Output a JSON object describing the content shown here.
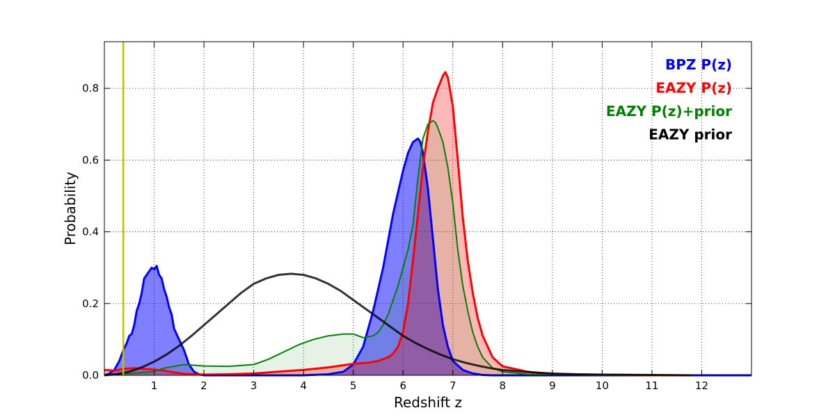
{
  "chart_data": {
    "type": "line",
    "title": "",
    "xlabel": "Redshift z",
    "ylabel": "Probability",
    "xlim": [
      0,
      13
    ],
    "ylim": [
      0,
      0.93
    ],
    "grid": true,
    "legend_position": "top-right",
    "x_ticks": [
      1,
      2,
      3,
      4,
      5,
      6,
      7,
      8,
      9,
      10,
      11,
      12
    ],
    "x_tick_labels": [
      "1",
      "2",
      "3",
      "4",
      "5",
      "6",
      "7",
      "8",
      "9",
      "10",
      "11",
      "12"
    ],
    "y_ticks": [
      0.0,
      0.2,
      0.4,
      0.6,
      0.8
    ],
    "y_tick_labels": [
      "0.0",
      "0.2",
      "0.4",
      "0.6",
      "0.8"
    ],
    "vertical_line": {
      "x": 0.38,
      "color": "#bfbf00"
    },
    "series": [
      {
        "name": "BPZ P(z)",
        "color": "#0000ff",
        "fill": "#0000ff",
        "fill_opacity": 0.5,
        "x": [
          0,
          0.1,
          0.2,
          0.3,
          0.38,
          0.45,
          0.5,
          0.55,
          0.6,
          0.65,
          0.7,
          0.75,
          0.8,
          0.85,
          0.9,
          0.95,
          1.0,
          1.05,
          1.1,
          1.15,
          1.2,
          1.25,
          1.3,
          1.35,
          1.4,
          1.5,
          1.6,
          1.7,
          1.8,
          1.9,
          2.0,
          2.5,
          3.0,
          3.5,
          4.0,
          4.5,
          4.8,
          5.0,
          5.2,
          5.4,
          5.6,
          5.8,
          6.0,
          6.1,
          6.2,
          6.3,
          6.35,
          6.4,
          6.5,
          6.6,
          6.7,
          6.8,
          6.9,
          7.0,
          7.2,
          7.4,
          7.6,
          7.8,
          8.0,
          8.5,
          9.0,
          10.0,
          11.0,
          12.0,
          13.0
        ],
        "y": [
          0.0,
          0.005,
          0.015,
          0.04,
          0.07,
          0.09,
          0.11,
          0.115,
          0.14,
          0.18,
          0.2,
          0.23,
          0.27,
          0.28,
          0.29,
          0.3,
          0.295,
          0.305,
          0.28,
          0.27,
          0.24,
          0.22,
          0.19,
          0.17,
          0.13,
          0.1,
          0.07,
          0.03,
          0.01,
          0.003,
          0.0,
          0.0,
          0.0,
          0.0,
          0.0,
          0.003,
          0.01,
          0.03,
          0.08,
          0.18,
          0.3,
          0.45,
          0.57,
          0.62,
          0.65,
          0.66,
          0.65,
          0.62,
          0.52,
          0.38,
          0.24,
          0.14,
          0.08,
          0.04,
          0.015,
          0.005,
          0.001,
          0.0,
          0.0,
          0.0,
          0.0,
          0.0,
          0.0,
          0.0,
          0.0
        ]
      },
      {
        "name": "EAZY P(z)",
        "color": "#ff0000",
        "fill": "#ff0000",
        "fill_opacity": 0.28,
        "x": [
          0,
          0.2,
          0.4,
          0.6,
          0.8,
          1.0,
          1.2,
          1.4,
          1.6,
          2.0,
          2.5,
          3.0,
          3.5,
          4.0,
          4.5,
          5.0,
          5.3,
          5.5,
          5.7,
          5.8,
          5.9,
          6.0,
          6.1,
          6.2,
          6.3,
          6.4,
          6.5,
          6.6,
          6.7,
          6.8,
          6.85,
          6.9,
          7.0,
          7.1,
          7.2,
          7.3,
          7.4,
          7.5,
          7.6,
          7.8,
          8.0,
          8.5,
          9.0,
          10.0,
          11.0,
          11.8
        ],
        "y": [
          0.015,
          0.013,
          0.018,
          0.02,
          0.018,
          0.016,
          0.013,
          0.008,
          0.004,
          0.002,
          0.003,
          0.005,
          0.01,
          0.015,
          0.022,
          0.032,
          0.035,
          0.04,
          0.05,
          0.06,
          0.08,
          0.12,
          0.2,
          0.32,
          0.45,
          0.58,
          0.68,
          0.76,
          0.8,
          0.835,
          0.845,
          0.83,
          0.75,
          0.6,
          0.44,
          0.32,
          0.23,
          0.16,
          0.11,
          0.05,
          0.025,
          0.01,
          0.003,
          0.001,
          0.0,
          0.0
        ]
      },
      {
        "name": "EAZY P(z)+prior",
        "color": "#008000",
        "fill": "#008000",
        "fill_opacity": 0.1,
        "x": [
          0,
          0.5,
          1.0,
          1.2,
          1.4,
          1.6,
          1.8,
          2.0,
          2.5,
          3.0,
          3.3,
          3.6,
          3.9,
          4.2,
          4.5,
          4.8,
          5.0,
          5.2,
          5.4,
          5.5,
          5.6,
          5.7,
          5.8,
          5.9,
          6.0,
          6.1,
          6.2,
          6.3,
          6.4,
          6.5,
          6.6,
          6.65,
          6.7,
          6.8,
          6.9,
          7.0,
          7.1,
          7.2,
          7.3,
          7.4,
          7.5,
          7.6,
          7.8,
          8.0,
          8.5,
          9.0,
          10.0,
          11.0,
          11.8
        ],
        "y": [
          0.0,
          0.005,
          0.01,
          0.02,
          0.025,
          0.03,
          0.028,
          0.026,
          0.025,
          0.03,
          0.045,
          0.065,
          0.085,
          0.1,
          0.11,
          0.115,
          0.115,
          0.105,
          0.11,
          0.12,
          0.14,
          0.17,
          0.21,
          0.25,
          0.3,
          0.35,
          0.42,
          0.55,
          0.66,
          0.7,
          0.71,
          0.705,
          0.69,
          0.65,
          0.58,
          0.48,
          0.35,
          0.25,
          0.18,
          0.12,
          0.08,
          0.05,
          0.02,
          0.01,
          0.003,
          0.001,
          0.0,
          0.0,
          0.0
        ]
      },
      {
        "name": "EAZY prior",
        "color": "#000000",
        "fill": "none",
        "line_opacity": 0.8,
        "x": [
          0,
          0.25,
          0.5,
          0.75,
          1.0,
          1.25,
          1.5,
          1.75,
          2.0,
          2.25,
          2.5,
          2.75,
          3.0,
          3.25,
          3.5,
          3.75,
          4.0,
          4.25,
          4.5,
          4.75,
          5.0,
          5.25,
          5.5,
          5.75,
          6.0,
          6.25,
          6.5,
          6.75,
          7.0,
          7.25,
          7.5,
          7.75,
          8.0,
          8.5,
          9.0,
          9.5,
          10.0,
          11.0,
          11.8
        ],
        "y": [
          0.0,
          0.003,
          0.01,
          0.022,
          0.038,
          0.058,
          0.082,
          0.11,
          0.14,
          0.17,
          0.2,
          0.23,
          0.255,
          0.27,
          0.28,
          0.283,
          0.28,
          0.27,
          0.255,
          0.235,
          0.21,
          0.185,
          0.16,
          0.135,
          0.11,
          0.09,
          0.073,
          0.058,
          0.045,
          0.035,
          0.027,
          0.02,
          0.015,
          0.009,
          0.005,
          0.003,
          0.002,
          0.001,
          0.0
        ]
      }
    ]
  }
}
